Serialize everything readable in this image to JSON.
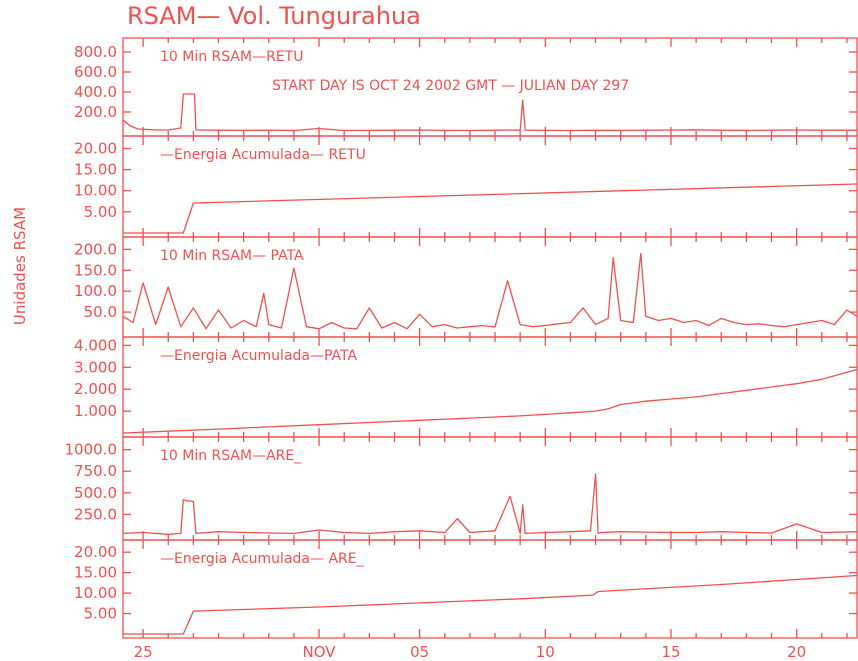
{
  "colors": {
    "trace": "#f0504e",
    "background": "#ffffff"
  },
  "chart_data": {
    "type": "line",
    "title": "RSAM— Vol. Tungurahua",
    "ylabel": "Unidades RSAM",
    "annotation": "START DAY IS OCT 24 2002 GMT    — JULIAN DAY 297",
    "x_ticks": [
      "25",
      "NOV",
      "05",
      "10",
      "15",
      "20"
    ],
    "x_tick_days": [
      1,
      8,
      12,
      17,
      22,
      27
    ],
    "x_range_days": [
      0.2,
      29.4
    ],
    "panels": [
      {
        "id": "retu-rsam",
        "label": "10 Min RSAM—RETU",
        "ylim": [
          0,
          900
        ],
        "yticks": [
          200,
          400,
          600,
          800
        ],
        "tick_labels": [
          "200.0",
          "400.0",
          "600.0",
          "800.0"
        ],
        "series": [
          {
            "x": [
              0.2,
              0.5,
              0.8,
              1.2,
              1.6,
              2.0,
              2.5,
              2.6,
              2.65,
              3.05,
              3.1,
              3.3,
              4,
              5,
              6,
              7,
              8,
              9,
              10,
              11,
              12,
              13,
              14,
              15,
              15.5,
              16,
              16.1,
              16.2,
              17,
              18,
              19,
              20,
              21,
              22,
              23,
              24,
              25,
              26,
              27,
              28,
              29.4
            ],
            "y": [
              120,
              60,
              30,
              25,
              20,
              20,
              40,
              380,
              380,
              380,
              20,
              20,
              18,
              16,
              18,
              15,
              35,
              15,
              16,
              18,
              20,
              16,
              15,
              18,
              20,
              18,
              320,
              18,
              16,
              15,
              17,
              16,
              18,
              20,
              22,
              18,
              16,
              18,
              20,
              18,
              18
            ]
          }
        ]
      },
      {
        "id": "retu-energy",
        "label": "—Energia Acumulada— RETU",
        "ylim": [
          0,
          22
        ],
        "yticks": [
          5,
          10,
          15,
          20
        ],
        "tick_labels": [
          "5.00",
          "10.00",
          "15.00",
          "20.00"
        ],
        "series": [
          {
            "x": [
              0.2,
              2.6,
              3.0,
              29.4
            ],
            "y": [
              0,
              0,
              7.1,
              11.6
            ]
          }
        ]
      },
      {
        "id": "pata-rsam",
        "label": "10 Min RSAM— PATA",
        "ylim": [
          0,
          220
        ],
        "yticks": [
          50,
          100,
          150,
          200
        ],
        "tick_labels": [
          "50.0",
          "100.0",
          "150.0",
          "200.0"
        ],
        "series": [
          {
            "x": [
              0.2,
              0.6,
              1.0,
              1.5,
              2.0,
              2.5,
              3.0,
              3.5,
              4.0,
              4.5,
              5.0,
              5.5,
              5.8,
              6.0,
              6.5,
              7.0,
              7.5,
              8.0,
              8.5,
              9.0,
              9.5,
              10.0,
              10.5,
              11.0,
              11.5,
              12.0,
              12.5,
              13.0,
              13.5,
              14.0,
              14.5,
              15.0,
              15.5,
              16.0,
              16.5,
              17.0,
              17.5,
              18.0,
              18.5,
              19.0,
              19.5,
              19.7,
              20.0,
              20.5,
              20.8,
              21.0,
              21.5,
              22.0,
              22.5,
              23.0,
              23.5,
              24.0,
              24.5,
              25.0,
              25.5,
              26.0,
              26.5,
              27.0,
              27.5,
              28.0,
              28.5,
              29.0,
              29.4
            ],
            "y": [
              40,
              25,
              120,
              20,
              110,
              15,
              60,
              10,
              55,
              12,
              30,
              15,
              95,
              20,
              12,
              155,
              15,
              10,
              25,
              12,
              10,
              60,
              12,
              25,
              10,
              45,
              15,
              20,
              12,
              15,
              18,
              14,
              125,
              20,
              15,
              18,
              22,
              25,
              60,
              20,
              35,
              180,
              30,
              25,
              190,
              40,
              30,
              35,
              25,
              30,
              18,
              35,
              25,
              20,
              22,
              18,
              15,
              20,
              25,
              30,
              20,
              55,
              40
            ]
          }
        ]
      },
      {
        "id": "pata-energy",
        "label": "—Energia Acumulada—PATA",
        "ylim": [
          0,
          4.2
        ],
        "yticks": [
          1,
          2,
          3,
          4
        ],
        "tick_labels": [
          "1.000",
          "2.000",
          "3.000",
          "4.000"
        ],
        "series": [
          {
            "x": [
              0.2,
              2,
              4,
              6,
              8,
              10,
              12,
              14,
              16,
              17,
              18,
              19,
              19.5,
              20,
              21,
              22,
              23,
              24,
              25,
              26,
              27,
              28,
              29.4
            ],
            "y": [
              0,
              0.08,
              0.18,
              0.28,
              0.38,
              0.48,
              0.58,
              0.68,
              0.78,
              0.85,
              0.92,
              1.0,
              1.1,
              1.3,
              1.45,
              1.55,
              1.65,
              1.8,
              1.95,
              2.1,
              2.25,
              2.45,
              2.9
            ]
          }
        ]
      },
      {
        "id": "are-rsam",
        "label": "10 Min RSAM—ARE_",
        "ylim": [
          0,
          1100
        ],
        "yticks": [
          250,
          500,
          750,
          1000
        ],
        "tick_labels": [
          "250.0",
          "500.0",
          "750.0",
          "1000.0"
        ],
        "series": [
          {
            "x": [
              0.2,
              1,
              2,
              2.5,
              2.6,
              2.7,
              3.0,
              3.1,
              4,
              5,
              6,
              7,
              8,
              9,
              10,
              11,
              12,
              13,
              13.5,
              14,
              15,
              15.6,
              16,
              16.1,
              16.2,
              17,
              18,
              18.8,
              19,
              19.1,
              19.2,
              20,
              21,
              22,
              23,
              24,
              25,
              26,
              27,
              28,
              29.4
            ],
            "y": [
              30,
              40,
              20,
              30,
              420,
              410,
              400,
              30,
              50,
              40,
              35,
              30,
              70,
              40,
              30,
              50,
              60,
              40,
              200,
              40,
              60,
              460,
              30,
              360,
              30,
              40,
              50,
              60,
              720,
              30,
              40,
              50,
              45,
              40,
              40,
              50,
              40,
              35,
              140,
              40,
              50
            ]
          }
        ]
      },
      {
        "id": "are-energy",
        "label": "—Energia Acumulada— ARE_",
        "ylim": [
          0,
          22
        ],
        "yticks": [
          5,
          10,
          15,
          20
        ],
        "tick_labels": [
          "5.00",
          "10.00",
          "15.00",
          "20.00"
        ],
        "series": [
          {
            "x": [
              0.2,
              2.6,
              3.0,
              8,
              12,
              16,
              18.9,
              19.1,
              24,
              29.4
            ],
            "y": [
              0,
              0,
              5.6,
              6.6,
              7.6,
              8.6,
              9.5,
              10.4,
              12.1,
              14.3
            ]
          }
        ]
      }
    ]
  }
}
